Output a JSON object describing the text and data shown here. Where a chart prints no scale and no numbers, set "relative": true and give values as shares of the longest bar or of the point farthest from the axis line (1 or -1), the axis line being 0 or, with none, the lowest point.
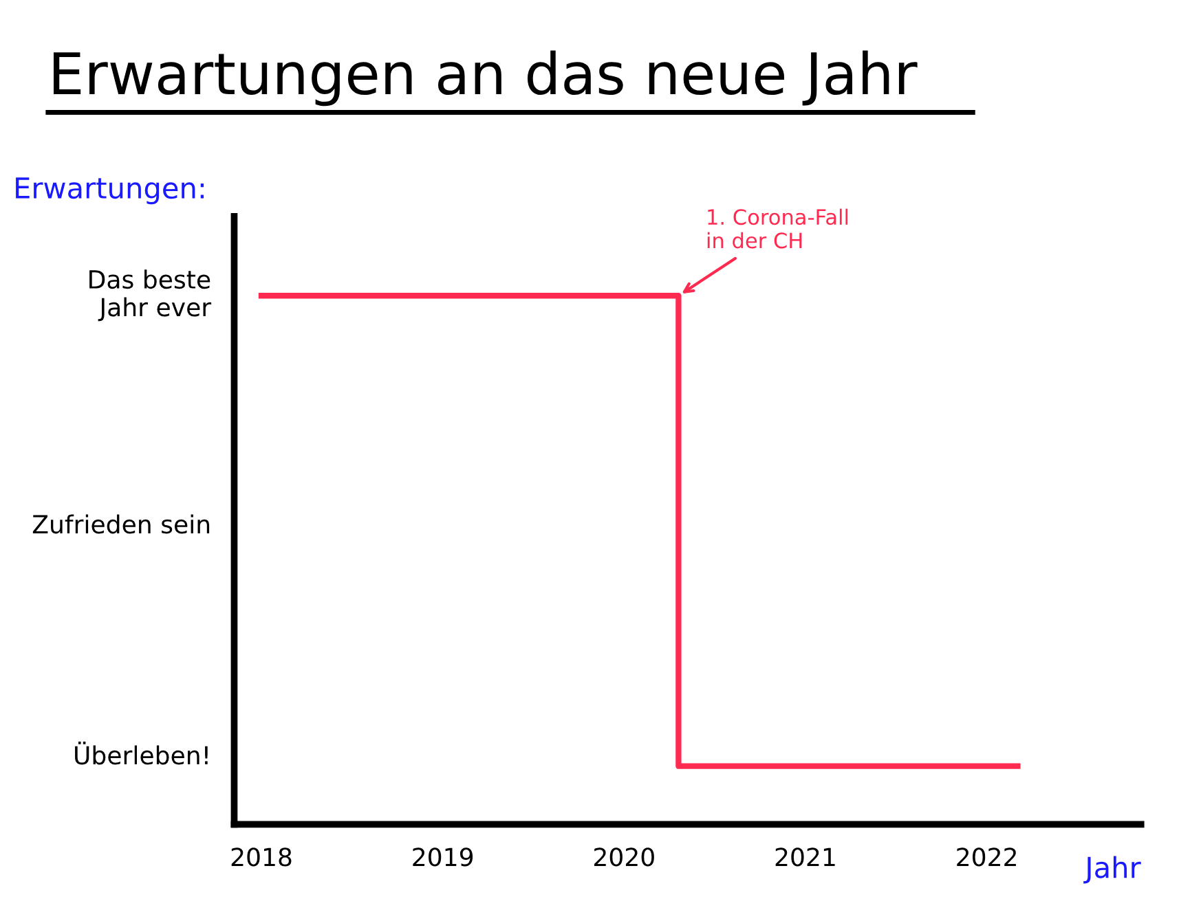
{
  "chart_data": {
    "type": "step",
    "title": "Erwartungen an das neue Jahr",
    "ylabel": "Erwartungen:",
    "xlabel": "Jahr",
    "relative": true,
    "x": [
      2018,
      2020.3,
      2022.17
    ],
    "series": [
      {
        "color": "#ff2a50",
        "values": [
          1,
          0.11,
          0.11
        ]
      }
    ],
    "xlim": [
      2017.85,
      2022.85
    ],
    "xticks": [
      2018,
      2019,
      2020,
      2021,
      2022
    ],
    "annotations": [
      {
        "text": "1. Corona-Fall\nin der CH",
        "x": 2020.3,
        "y": 1
      },
      "Das beste\nJahr ever",
      "Zufrieden sein",
      "Überleben!"
    ],
    "grid": false,
    "legend": false,
    "marker": "none",
    "line_style": "solid"
  }
}
